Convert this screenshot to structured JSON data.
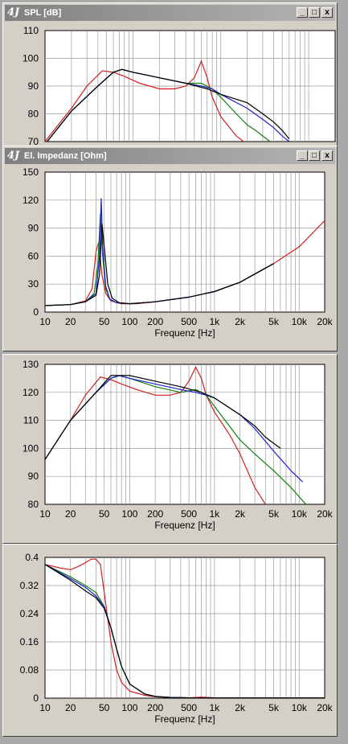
{
  "windows": [
    {
      "title": "SPL [dB]",
      "logo": "4J"
    },
    {
      "title": "El. Impedanz [Ohm]",
      "logo": "4J"
    }
  ],
  "window_buttons": {
    "minimize": "_",
    "maximize": "□",
    "close": "x"
  },
  "colors": {
    "red": "#d02020",
    "green": "#108010",
    "blue": "#2020d0",
    "black": "#000000",
    "grid": "#9a9a9a"
  },
  "chart_data": [
    {
      "type": "line",
      "id": "spl-top",
      "xscale": "log",
      "xlim": [
        10,
        20000
      ],
      "ylim": [
        70,
        110
      ],
      "yticks": [
        70,
        80,
        90,
        100,
        110
      ],
      "xticks": [],
      "xlabel": "",
      "series": [
        {
          "color": "red",
          "x": [
            10,
            20,
            30,
            45,
            60,
            80,
            120,
            200,
            300,
            400,
            500,
            600,
            700,
            800,
            1000,
            1500,
            2000
          ],
          "y": [
            70,
            82,
            90,
            95.5,
            95,
            93.5,
            91,
            89,
            89,
            90,
            93,
            99,
            93,
            86,
            79,
            72,
            69
          ]
        },
        {
          "color": "green",
          "x": [
            10,
            20,
            40,
            60,
            75,
            100,
            200,
            400,
            600,
            800,
            1000,
            1500,
            2000,
            2500,
            3000,
            4000
          ],
          "y": [
            69,
            81,
            90,
            95,
            96,
            95,
            93,
            91,
            91,
            89,
            86,
            80,
            76,
            74,
            72,
            69
          ]
        },
        {
          "color": "blue",
          "x": [
            10,
            20,
            40,
            60,
            75,
            100,
            200,
            400,
            600,
            800,
            1000,
            2000,
            3000,
            4000,
            5000,
            6000
          ],
          "y": [
            69,
            81,
            90,
            95,
            96,
            95,
            93,
            91,
            90,
            89,
            87,
            82,
            78,
            75,
            72,
            70
          ]
        },
        {
          "color": "black",
          "x": [
            10,
            20,
            40,
            60,
            75,
            100,
            200,
            400,
            700,
            1000,
            2000,
            3000,
            4000,
            5000,
            6000
          ],
          "y": [
            69,
            81,
            90,
            95,
            96,
            95,
            93,
            91,
            89,
            87,
            84,
            80,
            77,
            74,
            71
          ]
        }
      ]
    },
    {
      "type": "line",
      "id": "impedance",
      "xscale": "log",
      "xlim": [
        10,
        20000
      ],
      "ylim": [
        0,
        150
      ],
      "yticks": [
        0,
        30,
        60,
        90,
        120,
        150
      ],
      "xticks": [
        {
          "v": 10,
          "t": "10"
        },
        {
          "v": 20,
          "t": "20"
        },
        {
          "v": 50,
          "t": "50"
        },
        {
          "v": 100,
          "t": "100"
        },
        {
          "v": 200,
          "t": "200"
        },
        {
          "v": 500,
          "t": "500"
        },
        {
          "v": 1000,
          "t": "1k"
        },
        {
          "v": 2000,
          "t": "2k"
        },
        {
          "v": 5000,
          "t": "5k"
        },
        {
          "v": 10000,
          "t": "10k"
        },
        {
          "v": 20000,
          "t": "20k"
        }
      ],
      "xlabel": "Frequenz [Hz]",
      "series": [
        {
          "color": "red",
          "x": [
            10,
            20,
            30,
            36,
            40,
            43,
            47,
            52,
            60,
            80,
            120,
            200,
            500,
            1000,
            2000,
            5000,
            10000,
            20000
          ],
          "y": [
            7,
            8,
            12,
            25,
            65,
            75,
            40,
            20,
            12,
            9,
            9,
            11,
            16,
            22,
            32,
            52,
            70,
            98
          ]
        },
        {
          "color": "green",
          "x": [
            10,
            20,
            30,
            38,
            42,
            45,
            48,
            52,
            58,
            70,
            100,
            200,
            500,
            1000,
            2000,
            5000
          ],
          "y": [
            7,
            8,
            11,
            20,
            50,
            105,
            60,
            25,
            14,
            10,
            9,
            11,
            16,
            22,
            32,
            52
          ]
        },
        {
          "color": "blue",
          "x": [
            10,
            20,
            30,
            40,
            44,
            46,
            48,
            52,
            58,
            70,
            100,
            200,
            500,
            1000,
            2000,
            5000
          ],
          "y": [
            7,
            8,
            11,
            20,
            60,
            122,
            70,
            28,
            14,
            10,
            9,
            11,
            16,
            22,
            32,
            52
          ]
        },
        {
          "color": "black",
          "x": [
            10,
            20,
            30,
            40,
            44,
            47,
            50,
            55,
            62,
            75,
            100,
            200,
            500,
            1000,
            2000,
            5000
          ],
          "y": [
            7,
            8,
            11,
            18,
            40,
            95,
            70,
            30,
            15,
            10,
            9,
            11,
            16,
            22,
            32,
            52
          ]
        }
      ]
    },
    {
      "type": "line",
      "id": "spl-bottom",
      "xscale": "log",
      "xlim": [
        10,
        20000
      ],
      "ylim": [
        80,
        130
      ],
      "yticks": [
        80,
        90,
        100,
        110,
        120,
        130
      ],
      "xticks": [
        {
          "v": 10,
          "t": "10"
        },
        {
          "v": 20,
          "t": "20"
        },
        {
          "v": 50,
          "t": "50"
        },
        {
          "v": 100,
          "t": "100"
        },
        {
          "v": 200,
          "t": "200"
        },
        {
          "v": 500,
          "t": "500"
        },
        {
          "v": 1000,
          "t": "1k"
        },
        {
          "v": 2000,
          "t": "2k"
        },
        {
          "v": 5000,
          "t": "5k"
        },
        {
          "v": 10000,
          "t": "10k"
        },
        {
          "v": 20000,
          "t": "20k"
        }
      ],
      "xlabel": "Frequenz [Hz]",
      "series": [
        {
          "color": "red",
          "x": [
            10,
            20,
            30,
            45,
            60,
            80,
            120,
            200,
            300,
            400,
            500,
            600,
            700,
            800,
            1000,
            1500,
            2000,
            3000,
            4000
          ],
          "y": [
            96,
            110,
            119,
            125.5,
            124.5,
            123,
            121,
            119,
            119,
            120,
            124,
            129,
            125,
            119,
            113,
            105,
            98,
            86,
            80
          ]
        },
        {
          "color": "green",
          "x": [
            10,
            20,
            40,
            60,
            75,
            100,
            200,
            400,
            600,
            800,
            1000,
            1500,
            2000,
            3000,
            5000,
            8000,
            12000
          ],
          "y": [
            96,
            110,
            120,
            125,
            126,
            125,
            122,
            120,
            121,
            119,
            115,
            108,
            103,
            98,
            92,
            86,
            80
          ]
        },
        {
          "color": "blue",
          "x": [
            10,
            20,
            40,
            60,
            75,
            100,
            200,
            400,
            600,
            800,
            1000,
            2000,
            3000,
            5000,
            8000,
            11000
          ],
          "y": [
            96,
            110,
            120,
            125,
            126,
            125,
            123,
            121,
            120,
            119,
            118,
            112,
            107,
            99,
            92,
            88
          ]
        },
        {
          "color": "black",
          "x": [
            10,
            20,
            40,
            60,
            75,
            100,
            200,
            400,
            700,
            1000,
            2000,
            3000,
            4000,
            6000
          ],
          "y": [
            96,
            110,
            120,
            126,
            126,
            126,
            124,
            122,
            120,
            118,
            112,
            108,
            104,
            100
          ]
        }
      ]
    },
    {
      "type": "line",
      "id": "excursion",
      "xscale": "log",
      "xlim": [
        10,
        20000
      ],
      "ylim": [
        0,
        0.4
      ],
      "yticks": [
        0,
        0.08,
        0.16,
        0.24,
        0.32,
        0.4
      ],
      "xticks": [
        {
          "v": 10,
          "t": "10"
        },
        {
          "v": 20,
          "t": "20"
        },
        {
          "v": 50,
          "t": "50"
        },
        {
          "v": 100,
          "t": "100"
        },
        {
          "v": 200,
          "t": "200"
        },
        {
          "v": 500,
          "t": "500"
        },
        {
          "v": 1000,
          "t": "1k"
        },
        {
          "v": 2000,
          "t": "2k"
        },
        {
          "v": 5000,
          "t": "5k"
        },
        {
          "v": 10000,
          "t": "10k"
        },
        {
          "v": 20000,
          "t": "20k"
        }
      ],
      "xlabel": "Frequenz [Hz]",
      "series": [
        {
          "color": "red",
          "x": [
            10,
            15,
            20,
            25,
            30,
            35,
            40,
            45,
            50,
            60,
            70,
            80,
            100,
            150,
            200,
            300,
            500,
            700,
            1000,
            20000
          ],
          "y": [
            0.38,
            0.37,
            0.365,
            0.375,
            0.385,
            0.395,
            0.395,
            0.38,
            0.3,
            0.16,
            0.08,
            0.045,
            0.02,
            0.008,
            0.004,
            0.002,
            0.001,
            0.003,
            0.001,
            0.001
          ]
        },
        {
          "color": "green",
          "x": [
            10,
            20,
            30,
            40,
            50,
            60,
            70,
            80,
            100,
            150,
            200,
            300,
            500,
            1000,
            20000
          ],
          "y": [
            0.38,
            0.345,
            0.32,
            0.3,
            0.26,
            0.2,
            0.14,
            0.09,
            0.04,
            0.012,
            0.005,
            0.002,
            0.001,
            0.001,
            0.001
          ]
        },
        {
          "color": "blue",
          "x": [
            10,
            20,
            30,
            40,
            50,
            60,
            70,
            80,
            100,
            150,
            200,
            300,
            500,
            1000,
            20000
          ],
          "y": [
            0.38,
            0.34,
            0.315,
            0.29,
            0.26,
            0.2,
            0.14,
            0.09,
            0.04,
            0.012,
            0.005,
            0.002,
            0.001,
            0.001,
            0.001
          ]
        },
        {
          "color": "black",
          "x": [
            10,
            20,
            30,
            40,
            50,
            60,
            70,
            80,
            100,
            150,
            200,
            300,
            500,
            1000,
            20000
          ],
          "y": [
            0.38,
            0.335,
            0.305,
            0.285,
            0.255,
            0.2,
            0.14,
            0.09,
            0.04,
            0.012,
            0.005,
            0.002,
            0.001,
            0.001,
            0.001
          ]
        }
      ]
    }
  ]
}
